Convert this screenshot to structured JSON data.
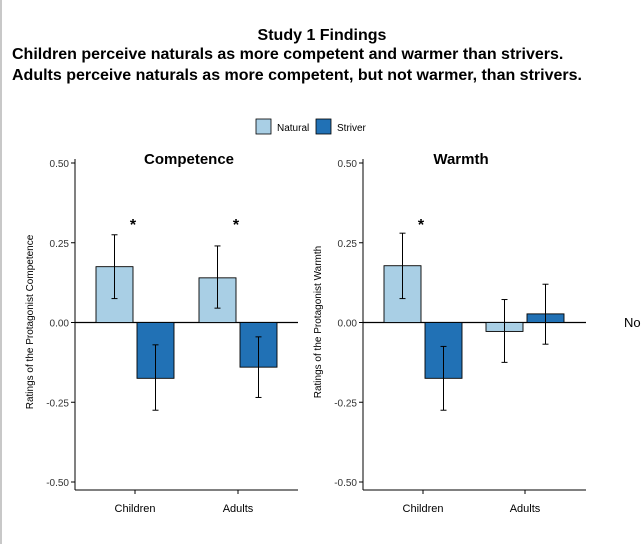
{
  "figure": {
    "title": "Study 1 Findings",
    "subtitle_line1": "Children perceive naturals as more competent and warmer than strivers.",
    "subtitle_line2": "Adults perceive naturals as more competent, but not warmer, than strivers.",
    "side_text": "No"
  },
  "colors": {
    "Natural": "#a9cfe5",
    "Striver": "#2171b5"
  },
  "legend": [
    "Natural",
    "Striver"
  ],
  "chart_data": [
    {
      "type": "bar",
      "title": "Competence",
      "ylabel": "Ratings of the Protagonist Competence",
      "xlabel": "",
      "categories": [
        "Children",
        "Adults"
      ],
      "ylim": [
        -0.5,
        0.5
      ],
      "yticks": [
        "0.50",
        "0.25",
        "0.00",
        "-0.25",
        "-0.50"
      ],
      "series": [
        {
          "name": "Natural",
          "values": [
            0.175,
            0.14
          ],
          "err_low": [
            0.075,
            0.045
          ],
          "err_high": [
            0.275,
            0.24
          ]
        },
        {
          "name": "Striver",
          "values": [
            -0.175,
            -0.14
          ],
          "err_low": [
            -0.275,
            -0.235
          ],
          "err_high": [
            -0.07,
            -0.045
          ]
        }
      ],
      "significance": [
        "*",
        "*"
      ]
    },
    {
      "type": "bar",
      "title": "Warmth",
      "ylabel": "Ratings of the Protagonist Warmth",
      "xlabel": "",
      "categories": [
        "Children",
        "Adults"
      ],
      "ylim": [
        -0.5,
        0.5
      ],
      "yticks": [
        "0.50",
        "0.25",
        "0.00",
        "-0.25",
        "-0.50"
      ],
      "series": [
        {
          "name": "Natural",
          "values": [
            0.178,
            -0.028
          ],
          "err_low": [
            0.075,
            -0.125
          ],
          "err_high": [
            0.28,
            0.072
          ]
        },
        {
          "name": "Striver",
          "values": [
            -0.175,
            0.027
          ],
          "err_low": [
            -0.275,
            -0.068
          ],
          "err_high": [
            -0.075,
            0.12
          ]
        }
      ],
      "significance": [
        "*",
        ""
      ]
    }
  ]
}
